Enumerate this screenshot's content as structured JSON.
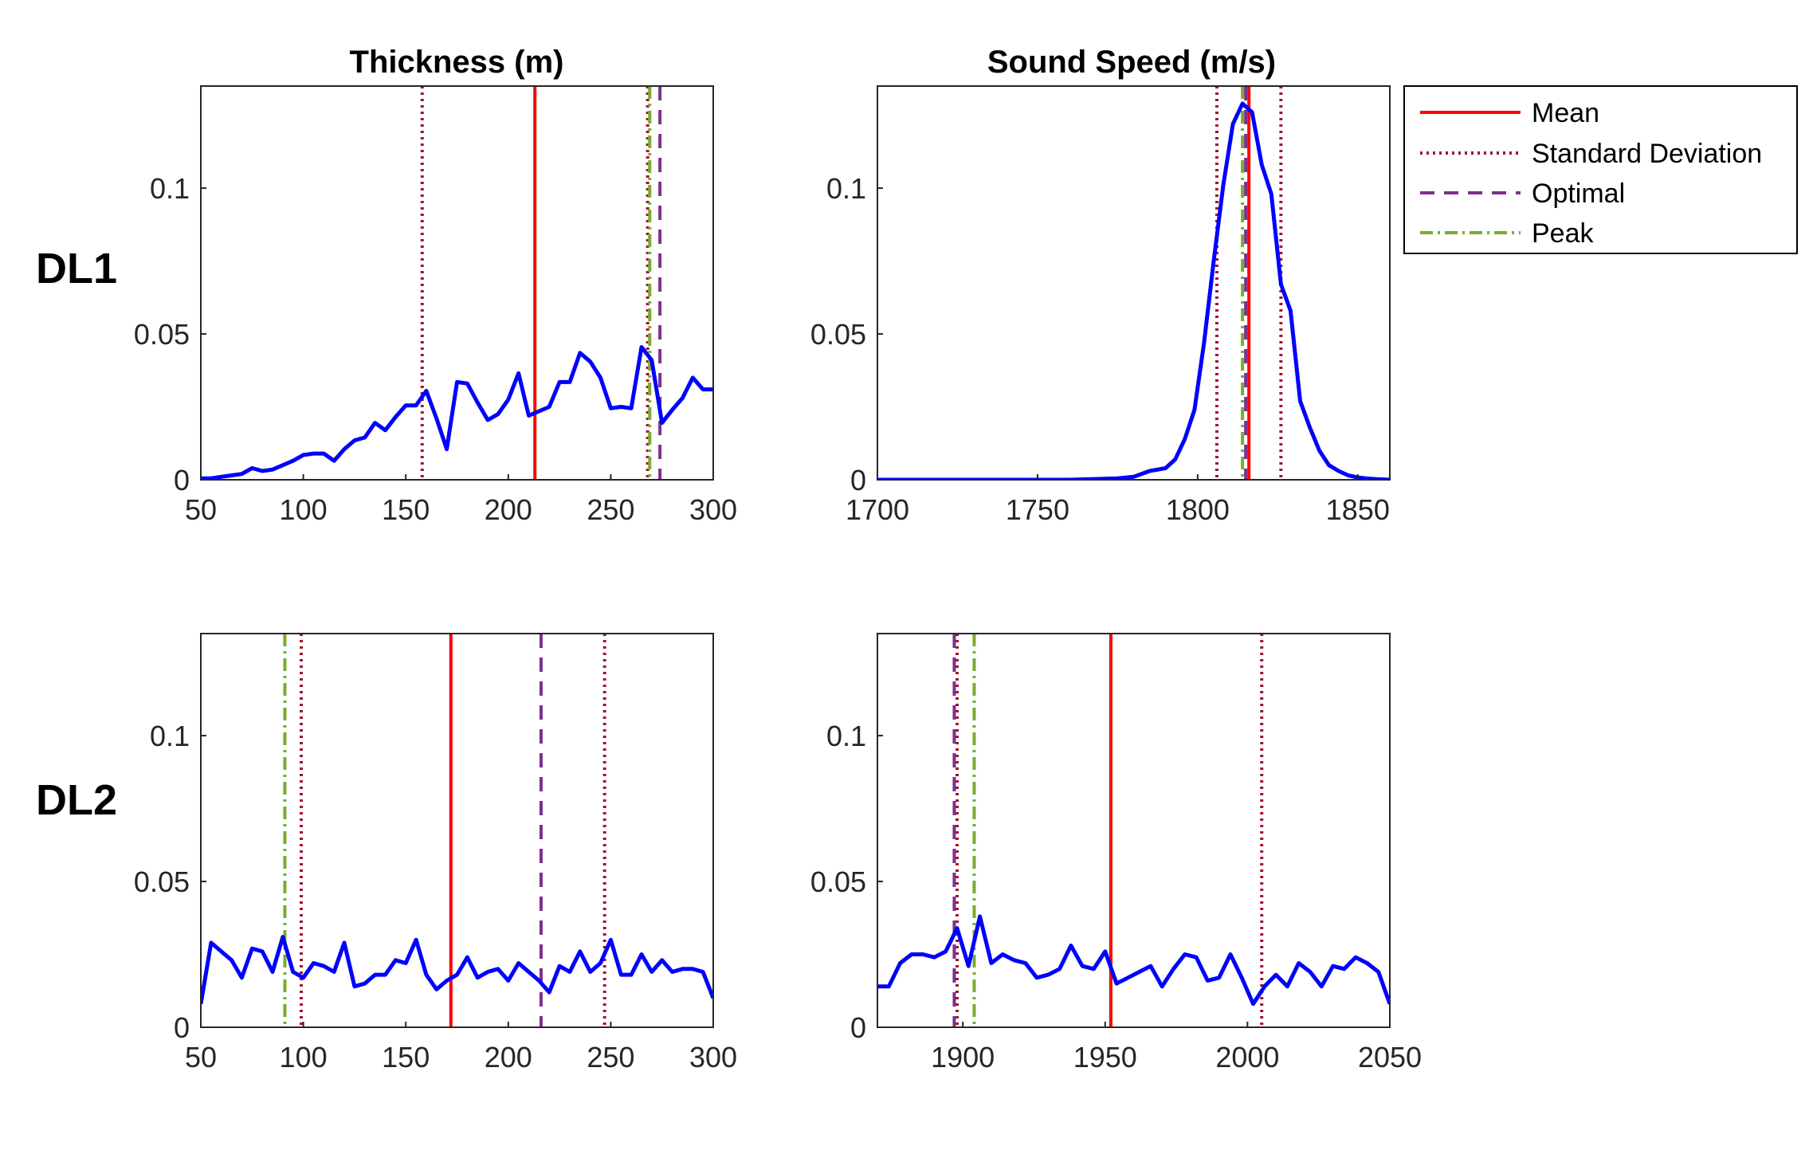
{
  "row_labels": [
    "DL1",
    "DL2"
  ],
  "column_titles": [
    "Thickness (m)",
    "Sound Speed (m/s)"
  ],
  "legend": {
    "placement": "right of top-right panel",
    "entries": [
      {
        "label": "Mean",
        "color": "#ff0000",
        "style": "solid"
      },
      {
        "label": "Standard Deviation",
        "color": "#a2142f",
        "style": "dotted"
      },
      {
        "label": "Optimal",
        "color": "#7e2f8e",
        "style": "dashed"
      },
      {
        "label": "Peak",
        "color": "#77ac30",
        "style": "dashdot"
      }
    ]
  },
  "colors": {
    "curve": "#0000ff",
    "mean": "#ff0000",
    "std": "#a2142f",
    "optimal": "#7e2f8e",
    "peak": "#77ac30"
  },
  "chart_data": [
    {
      "type": "line",
      "panel": "DL1 thickness",
      "xlim": [
        50,
        300
      ],
      "ylim": [
        0,
        0.135
      ],
      "xticks": [
        50,
        100,
        150,
        200,
        250,
        300
      ],
      "xtick_labels": [
        "50",
        "100",
        "150",
        "200",
        "250",
        "300"
      ],
      "yticks": [
        0,
        0.05,
        0.1
      ],
      "ytick_labels": [
        "0",
        "0.05",
        "0.1"
      ],
      "x": [
        50,
        55,
        60,
        65,
        70,
        75,
        80,
        85,
        90,
        95,
        100,
        105,
        110,
        115,
        120,
        125,
        130,
        135,
        140,
        145,
        150,
        155,
        160,
        165,
        170,
        175,
        180,
        185,
        190,
        195,
        200,
        205,
        210,
        215,
        220,
        225,
        230,
        235,
        240,
        245,
        250,
        255,
        260,
        265,
        270,
        275,
        280,
        285,
        290,
        295,
        300
      ],
      "y": [
        0.0005,
        0.0005,
        0.001,
        0.0015,
        0.002,
        0.004,
        0.003,
        0.0035,
        0.005,
        0.0065,
        0.0085,
        0.009,
        0.009,
        0.0065,
        0.0105,
        0.0135,
        0.0145,
        0.0195,
        0.017,
        0.0215,
        0.0255,
        0.0255,
        0.0305,
        0.021,
        0.0105,
        0.0335,
        0.033,
        0.0265,
        0.0205,
        0.0225,
        0.0275,
        0.0365,
        0.022,
        0.0235,
        0.025,
        0.0335,
        0.0335,
        0.0435,
        0.0405,
        0.035,
        0.0245,
        0.025,
        0.0245,
        0.0455,
        0.041,
        0.0195,
        0.024,
        0.028,
        0.035,
        0.031,
        0.031
      ],
      "lines": {
        "mean": 213,
        "std": [
          158,
          268
        ],
        "optimal": 274,
        "peak": 269
      }
    },
    {
      "type": "line",
      "panel": "DL1 sound speed",
      "xlim": [
        1700,
        1860
      ],
      "ylim": [
        0,
        0.135
      ],
      "xticks": [
        1700,
        1750,
        1800,
        1850
      ],
      "xtick_labels": [
        "1700",
        "1750",
        "1800",
        "1850"
      ],
      "yticks": [
        0,
        0.05,
        0.1
      ],
      "ytick_labels": [
        "0",
        "0.05",
        "0.1"
      ],
      "x": [
        1700,
        1720,
        1740,
        1760,
        1770,
        1775,
        1780,
        1785,
        1790,
        1793,
        1796,
        1799,
        1802,
        1805,
        1808,
        1811,
        1814,
        1817,
        1820,
        1823,
        1826,
        1829,
        1832,
        1835,
        1838,
        1841,
        1844,
        1847,
        1850,
        1853,
        1856,
        1860
      ],
      "y": [
        0,
        0,
        0,
        0,
        0.0003,
        0.0005,
        0.001,
        0.003,
        0.004,
        0.007,
        0.014,
        0.024,
        0.047,
        0.075,
        0.101,
        0.122,
        0.129,
        0.126,
        0.108,
        0.098,
        0.067,
        0.058,
        0.027,
        0.018,
        0.01,
        0.005,
        0.003,
        0.0015,
        0.0008,
        0.0004,
        0.0002,
        0
      ],
      "lines": {
        "mean": 1816,
        "std": [
          1806,
          1826
        ],
        "optimal": 1815,
        "peak": 1814
      }
    },
    {
      "type": "line",
      "panel": "DL2 thickness",
      "xlim": [
        50,
        300
      ],
      "ylim": [
        0,
        0.135
      ],
      "xticks": [
        50,
        100,
        150,
        200,
        250,
        300
      ],
      "xtick_labels": [
        "50",
        "100",
        "150",
        "200",
        "250",
        "300"
      ],
      "yticks": [
        0,
        0.05,
        0.1
      ],
      "ytick_labels": [
        "0",
        "0.05",
        "0.1"
      ],
      "x": [
        50,
        55,
        60,
        65,
        70,
        75,
        80,
        85,
        90,
        95,
        100,
        105,
        110,
        115,
        120,
        125,
        130,
        135,
        140,
        145,
        150,
        155,
        160,
        165,
        170,
        175,
        180,
        185,
        190,
        195,
        200,
        205,
        210,
        215,
        220,
        225,
        230,
        235,
        240,
        245,
        250,
        255,
        260,
        265,
        270,
        275,
        280,
        285,
        290,
        295,
        300
      ],
      "y": [
        0.008,
        0.029,
        0.026,
        0.023,
        0.017,
        0.027,
        0.026,
        0.019,
        0.031,
        0.019,
        0.017,
        0.022,
        0.021,
        0.019,
        0.029,
        0.014,
        0.015,
        0.018,
        0.018,
        0.023,
        0.022,
        0.03,
        0.018,
        0.013,
        0.016,
        0.018,
        0.024,
        0.017,
        0.019,
        0.02,
        0.016,
        0.022,
        0.019,
        0.016,
        0.012,
        0.021,
        0.019,
        0.026,
        0.019,
        0.022,
        0.03,
        0.018,
        0.018,
        0.025,
        0.019,
        0.023,
        0.019,
        0.02,
        0.02,
        0.019,
        0.01
      ],
      "lines": {
        "mean": 172,
        "std": [
          99,
          247
        ],
        "optimal": 216,
        "peak": 91
      }
    },
    {
      "type": "line",
      "panel": "DL2 sound speed",
      "xlim": [
        1870,
        2050
      ],
      "ylim": [
        0,
        0.135
      ],
      "xticks": [
        1900,
        1950,
        2000,
        2050
      ],
      "xtick_labels": [
        "1900",
        "1950",
        "2000",
        "2050"
      ],
      "yticks": [
        0,
        0.05,
        0.1
      ],
      "ytick_labels": [
        "0",
        "0.05",
        "0.1"
      ],
      "x": [
        1870,
        1874,
        1878,
        1882,
        1886,
        1890,
        1894,
        1898,
        1902,
        1906,
        1910,
        1914,
        1918,
        1922,
        1926,
        1930,
        1934,
        1938,
        1942,
        1946,
        1950,
        1954,
        1958,
        1962,
        1966,
        1970,
        1974,
        1978,
        1982,
        1986,
        1990,
        1994,
        1998,
        2002,
        2006,
        2010,
        2014,
        2018,
        2022,
        2026,
        2030,
        2034,
        2038,
        2042,
        2046,
        2050
      ],
      "y": [
        0.014,
        0.014,
        0.022,
        0.025,
        0.025,
        0.024,
        0.026,
        0.034,
        0.021,
        0.038,
        0.022,
        0.025,
        0.023,
        0.022,
        0.017,
        0.018,
        0.02,
        0.028,
        0.021,
        0.02,
        0.026,
        0.015,
        0.017,
        0.019,
        0.021,
        0.014,
        0.02,
        0.025,
        0.024,
        0.016,
        0.017,
        0.025,
        0.017,
        0.008,
        0.014,
        0.018,
        0.014,
        0.022,
        0.019,
        0.014,
        0.021,
        0.02,
        0.024,
        0.022,
        0.019,
        0.008
      ],
      "lines": {
        "mean": 1952,
        "std": [
          1898,
          2005
        ],
        "optimal": 1897,
        "peak": 1904
      }
    }
  ]
}
